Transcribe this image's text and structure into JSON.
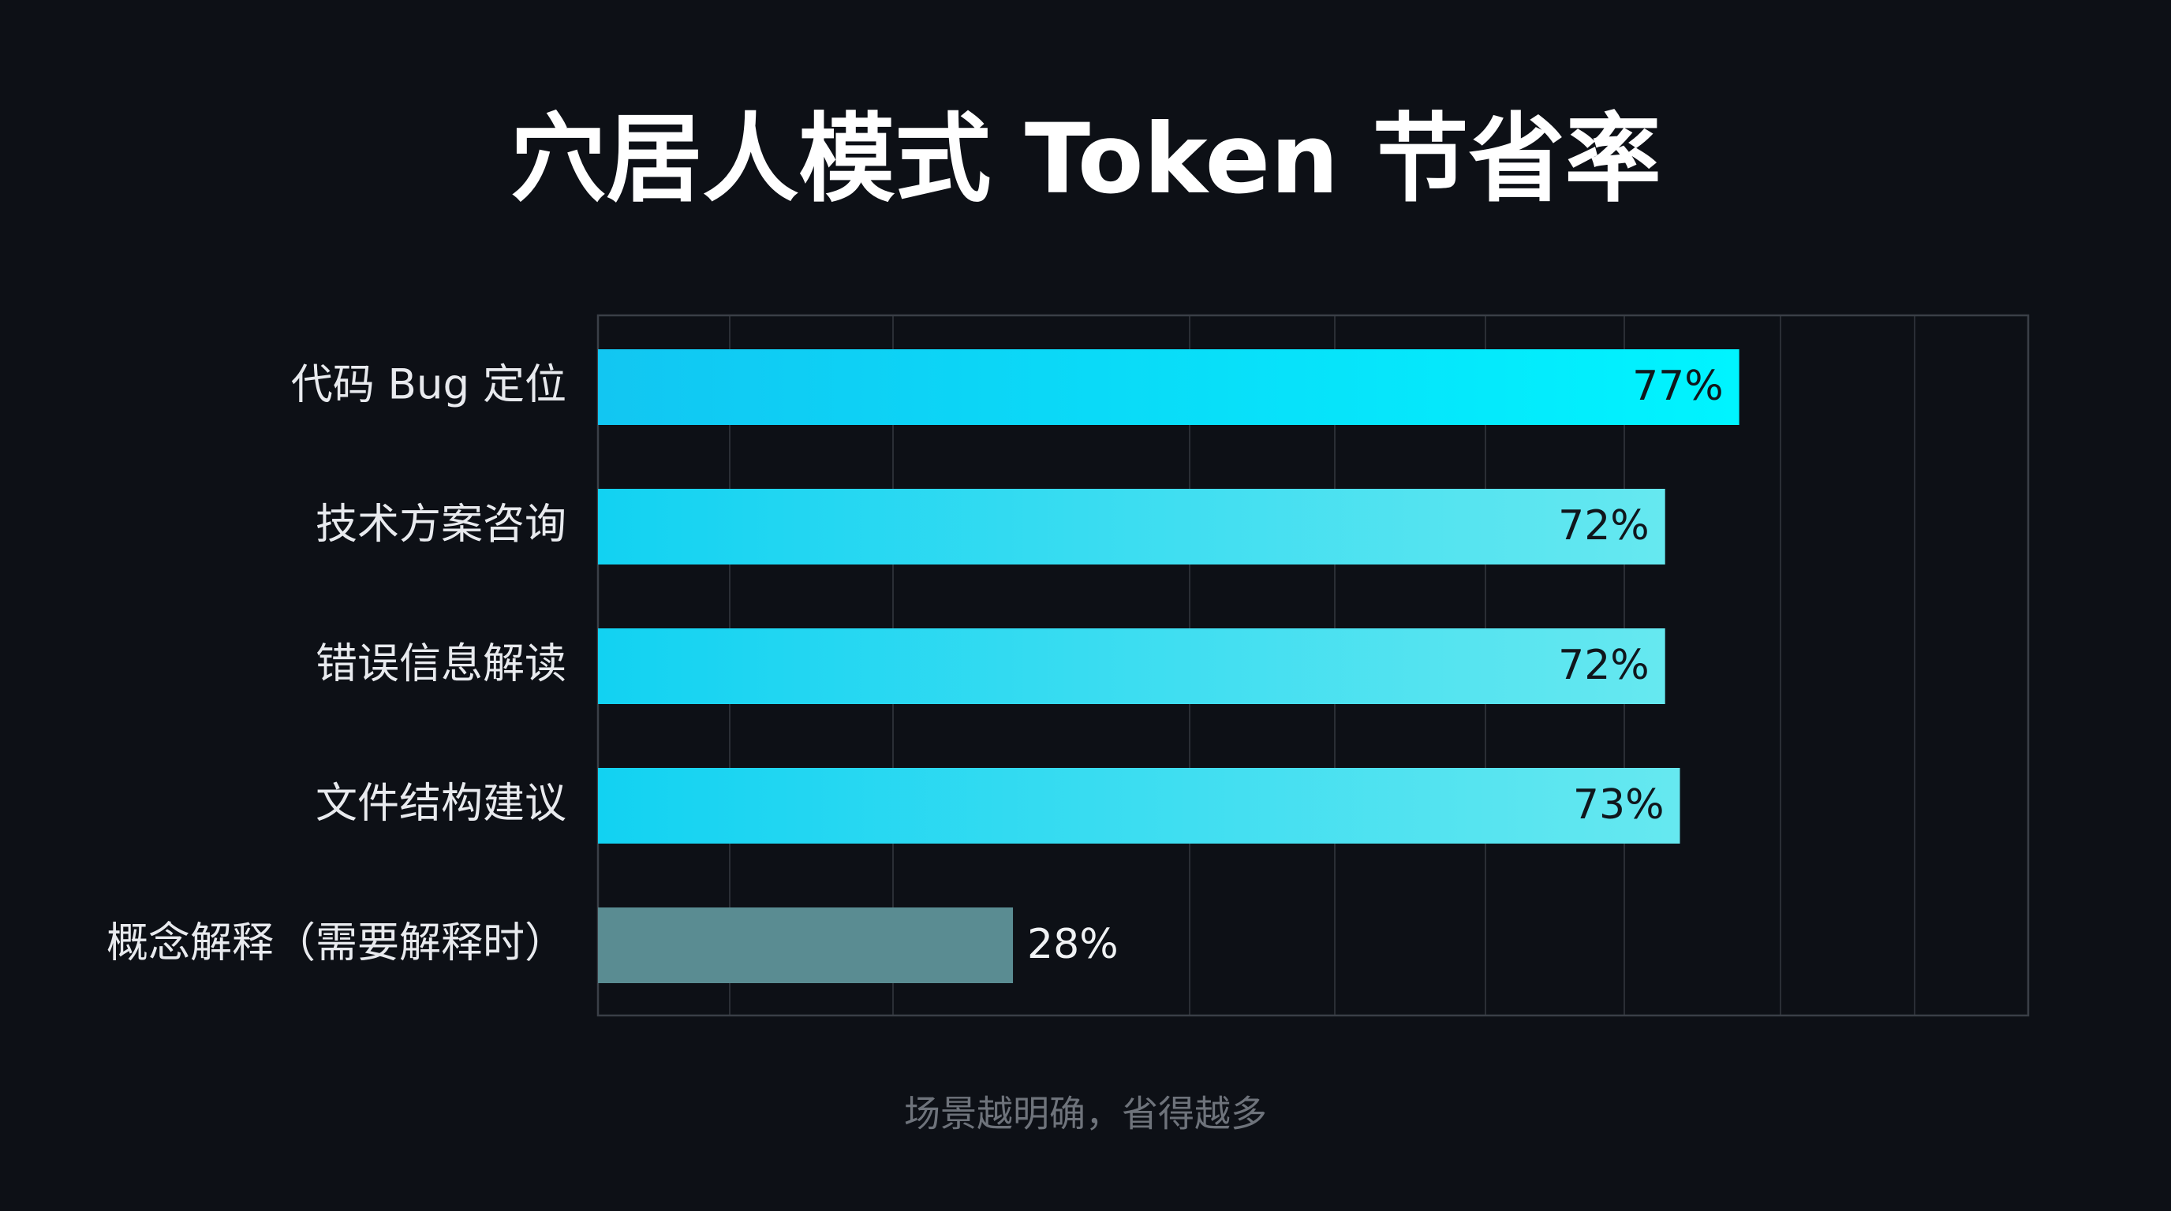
{
  "chart_data": {
    "type": "hbar",
    "title": "穴居人模式 Token 节省率",
    "subtitle": "场景越明确，省得越多",
    "categories": [
      "代码 Bug 定位",
      "技术方案咨询",
      "错误信息解读",
      "文件结构建议",
      "概念解释（需要解释时）"
    ],
    "values": [
      77,
      72,
      72,
      73,
      28
    ],
    "value_labels": [
      "77%",
      "72%",
      "72%",
      "73%",
      "28%"
    ],
    "colors": [
      [
        "#12c6f2",
        "#00f4ff"
      ],
      [
        "#12d2f2",
        "#66e8f0"
      ],
      [
        "#12d2f2",
        "#66e8f0"
      ],
      [
        "#12d2f2",
        "#66e8f0"
      ],
      [
        "#5a8c92",
        "#5a8c92"
      ]
    ],
    "xlim": [
      0,
      96.5
    ]
  }
}
